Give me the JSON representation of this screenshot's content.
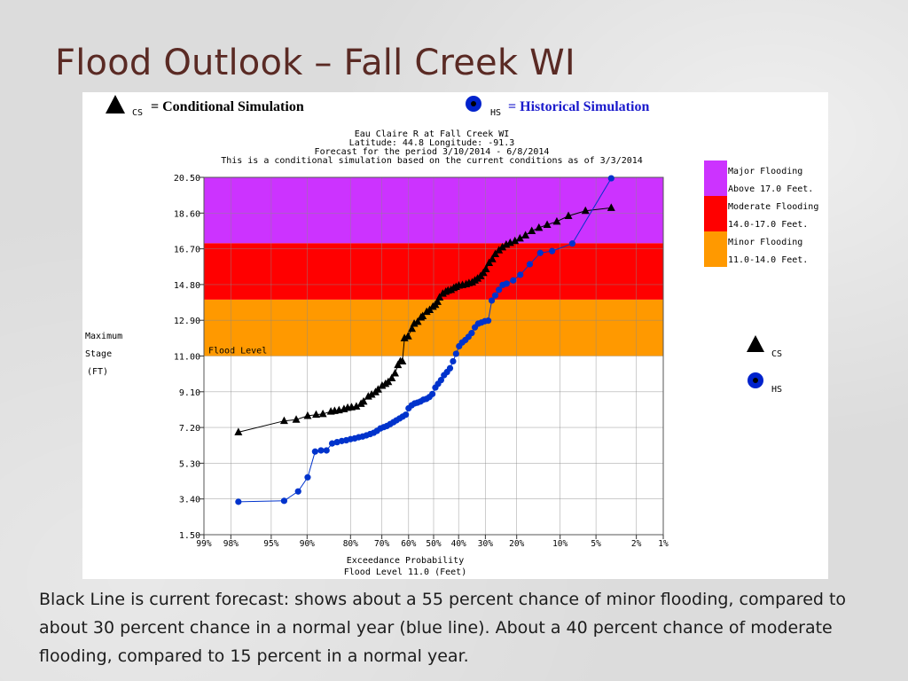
{
  "slide": {
    "title": "Flood Outlook – Fall Creek WI",
    "caption": "Black Line is current forecast:  shows about a 55 percent chance of minor flooding, compared to about 30 percent chance in a normal year (blue line).  About a 40 percent chance of moderate flooding, compared to 15 percent in a normal year."
  },
  "legend_top": {
    "cs_abbr": "CS",
    "cs_text": "= Conditional Simulation",
    "hs_abbr": "HS",
    "hs_text": "= Historical Simulation"
  },
  "colors": {
    "major": "#cc33ff",
    "moderate": "#ff0000",
    "minor": "#ff9900",
    "cs_series": "#000000",
    "hs_series": "#0033cc",
    "hs_text": "#1a1acc",
    "title": "#5a2a24"
  },
  "chart_data": {
    "type": "line",
    "header": [
      "Eau Claire R at Fall Creek WI",
      "Latitude: 44.8     Longitude:  -91.3",
      "Forecast for the period 3/10/2014 - 6/8/2014",
      "This is a conditional simulation based on the current conditions as of 3/3/2014"
    ],
    "xlabel": "Exceedance Probability",
    "xlabel2": "Flood Level 11.0 (Feet)",
    "ylabel": [
      "Maximum",
      "Stage",
      "(FT)"
    ],
    "ylim": [
      1.5,
      20.5
    ],
    "yticks": [
      "1.50",
      "3.40",
      "5.30",
      "7.20",
      "9.10",
      "11.00",
      "12.90",
      "14.80",
      "16.70",
      "18.60",
      "20.50"
    ],
    "xlim": [
      99,
      1
    ],
    "xticks": [
      {
        "v": 99,
        "t": "99%"
      },
      {
        "v": 98,
        "t": "98%"
      },
      {
        "v": 95,
        "t": "95%"
      },
      {
        "v": 90,
        "t": "90%"
      },
      {
        "v": 80,
        "t": "80%"
      },
      {
        "v": 70,
        "t": "70%"
      },
      {
        "v": 60,
        "t": "60%"
      },
      {
        "v": 50,
        "t": "50%"
      },
      {
        "v": 40,
        "t": "40%"
      },
      {
        "v": 30,
        "t": "30%"
      },
      {
        "v": 20,
        "t": "20%"
      },
      {
        "v": 10,
        "t": "10%"
      },
      {
        "v": 5,
        "t": "5%"
      },
      {
        "v": 2,
        "t": "2%"
      },
      {
        "v": 1,
        "t": "1%"
      }
    ],
    "bands": [
      {
        "from": 11.0,
        "to": 14.0,
        "color": "#ff9900",
        "label": "Flood Level"
      },
      {
        "from": 14.0,
        "to": 17.0,
        "color": "#ff0000"
      },
      {
        "from": 17.0,
        "to": 20.5,
        "color": "#cc33ff"
      }
    ],
    "band_legend": [
      {
        "color": "#cc33ff",
        "line1": "Major Flooding",
        "line2": "Above 17.0 Feet."
      },
      {
        "color": "#ff0000",
        "line1": "Moderate Flooding",
        "line2": "14.0-17.0 Feet."
      },
      {
        "color": "#ff9900",
        "line1": "Minor Flooding",
        "line2": "11.0-14.0 Feet."
      }
    ],
    "series_legend": [
      {
        "name": "CS",
        "marker": "triangle"
      },
      {
        "name": "HS",
        "marker": "circle"
      }
    ],
    "series": [
      {
        "name": "CS",
        "marker": "triangle",
        "color": "#000000",
        "points": [
          [
            97.6,
            6.95
          ],
          [
            93.5,
            7.55
          ],
          [
            91.8,
            7.62
          ],
          [
            89.9,
            7.82
          ],
          [
            88.3,
            7.88
          ],
          [
            86.9,
            7.92
          ],
          [
            85.1,
            8.05
          ],
          [
            84.2,
            8.08
          ],
          [
            83.1,
            8.12
          ],
          [
            81.8,
            8.18
          ],
          [
            80.8,
            8.25
          ],
          [
            79.7,
            8.28
          ],
          [
            78.3,
            8.32
          ],
          [
            76.9,
            8.46
          ],
          [
            76.1,
            8.58
          ],
          [
            74.6,
            8.85
          ],
          [
            73.5,
            8.95
          ],
          [
            72.2,
            9.08
          ],
          [
            71.3,
            9.22
          ],
          [
            69.9,
            9.42
          ],
          [
            68.7,
            9.52
          ],
          [
            67.7,
            9.62
          ],
          [
            66.4,
            9.82
          ],
          [
            65.2,
            10.08
          ],
          [
            64.1,
            10.52
          ],
          [
            63.2,
            10.72
          ],
          [
            62.4,
            10.72
          ],
          [
            61.6,
            11.95
          ],
          [
            60.2,
            12.05
          ],
          [
            58.7,
            12.45
          ],
          [
            57.8,
            12.72
          ],
          [
            56.4,
            12.82
          ],
          [
            55.1,
            13.05
          ],
          [
            54.4,
            13.12
          ],
          [
            52.8,
            13.35
          ],
          [
            51.6,
            13.45
          ],
          [
            50.3,
            13.62
          ],
          [
            49.3,
            13.72
          ],
          [
            48.4,
            13.88
          ],
          [
            47.6,
            14.12
          ],
          [
            46.3,
            14.32
          ],
          [
            45.1,
            14.42
          ],
          [
            44.2,
            14.48
          ],
          [
            43.0,
            14.52
          ],
          [
            41.9,
            14.62
          ],
          [
            41.0,
            14.68
          ],
          [
            39.9,
            14.75
          ],
          [
            38.5,
            14.78
          ],
          [
            37.1,
            14.82
          ],
          [
            36.0,
            14.88
          ],
          [
            34.8,
            14.92
          ],
          [
            33.8,
            15.02
          ],
          [
            32.8,
            15.12
          ],
          [
            31.7,
            15.25
          ],
          [
            30.7,
            15.42
          ],
          [
            29.8,
            15.62
          ],
          [
            28.7,
            15.95
          ],
          [
            27.6,
            16.15
          ],
          [
            26.6,
            16.42
          ],
          [
            25.4,
            16.62
          ],
          [
            24.3,
            16.78
          ],
          [
            23.1,
            16.92
          ],
          [
            21.9,
            17.02
          ],
          [
            20.5,
            17.12
          ],
          [
            19.1,
            17.25
          ],
          [
            17.6,
            17.42
          ],
          [
            16.0,
            17.65
          ],
          [
            14.3,
            17.82
          ],
          [
            12.5,
            17.98
          ],
          [
            10.6,
            18.15
          ],
          [
            8.6,
            18.45
          ],
          [
            6.2,
            18.72
          ],
          [
            3.6,
            18.88
          ]
        ]
      },
      {
        "name": "HS",
        "marker": "circle",
        "color": "#0033cc",
        "points": [
          [
            97.6,
            3.25
          ],
          [
            93.5,
            3.3
          ],
          [
            91.5,
            3.8
          ],
          [
            89.9,
            4.55
          ],
          [
            88.5,
            5.92
          ],
          [
            87.3,
            5.98
          ],
          [
            86.1,
            5.98
          ],
          [
            84.8,
            6.35
          ],
          [
            83.6,
            6.42
          ],
          [
            82.4,
            6.48
          ],
          [
            81.2,
            6.52
          ],
          [
            80.0,
            6.58
          ],
          [
            78.8,
            6.62
          ],
          [
            77.6,
            6.68
          ],
          [
            76.4,
            6.72
          ],
          [
            75.2,
            6.78
          ],
          [
            74.0,
            6.85
          ],
          [
            72.8,
            6.92
          ],
          [
            71.7,
            7.02
          ],
          [
            70.5,
            7.15
          ],
          [
            69.3,
            7.22
          ],
          [
            68.2,
            7.28
          ],
          [
            67.0,
            7.38
          ],
          [
            65.8,
            7.48
          ],
          [
            64.7,
            7.58
          ],
          [
            63.5,
            7.68
          ],
          [
            62.3,
            7.78
          ],
          [
            61.1,
            7.88
          ],
          [
            60.0,
            8.22
          ],
          [
            58.8,
            8.38
          ],
          [
            57.6,
            8.48
          ],
          [
            56.5,
            8.52
          ],
          [
            55.3,
            8.58
          ],
          [
            54.1,
            8.68
          ],
          [
            52.9,
            8.72
          ],
          [
            51.7,
            8.82
          ],
          [
            50.5,
            8.98
          ],
          [
            49.3,
            9.32
          ],
          [
            48.2,
            9.52
          ],
          [
            47.0,
            9.72
          ],
          [
            45.8,
            9.98
          ],
          [
            44.6,
            10.15
          ],
          [
            43.4,
            10.35
          ],
          [
            42.2,
            10.72
          ],
          [
            41.0,
            11.12
          ],
          [
            39.8,
            11.52
          ],
          [
            38.6,
            11.72
          ],
          [
            37.4,
            11.85
          ],
          [
            36.2,
            12.02
          ],
          [
            35.0,
            12.22
          ],
          [
            33.8,
            12.52
          ],
          [
            32.6,
            12.72
          ],
          [
            31.4,
            12.78
          ],
          [
            30.2,
            12.85
          ],
          [
            29.0,
            12.88
          ],
          [
            27.8,
            13.95
          ],
          [
            26.6,
            14.22
          ],
          [
            25.4,
            14.52
          ],
          [
            24.2,
            14.78
          ],
          [
            23.0,
            14.85
          ],
          [
            21.0,
            15.02
          ],
          [
            19.0,
            15.32
          ],
          [
            16.5,
            15.88
          ],
          [
            14.0,
            16.48
          ],
          [
            11.5,
            16.58
          ],
          [
            8.0,
            16.98
          ],
          [
            3.6,
            20.45
          ]
        ]
      }
    ]
  }
}
